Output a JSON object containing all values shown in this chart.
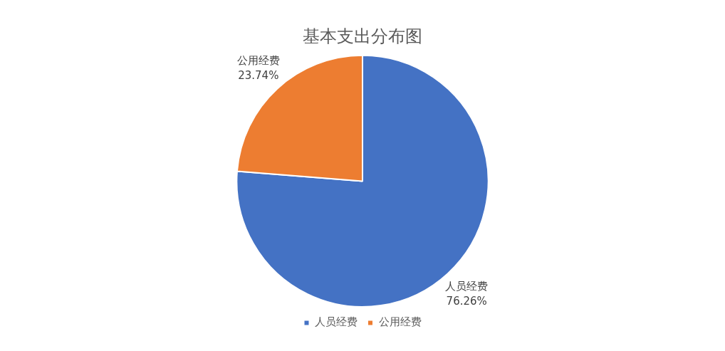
{
  "chart_data": {
    "type": "pie",
    "title": "基本支出分布图",
    "categories": [
      "人员经费",
      "公用经费"
    ],
    "values": [
      76.26,
      23.74
    ],
    "colors": [
      "#4472c4",
      "#ed7d31"
    ],
    "value_labels": [
      "76.26%",
      "23.74%"
    ],
    "legend": "bottom"
  }
}
